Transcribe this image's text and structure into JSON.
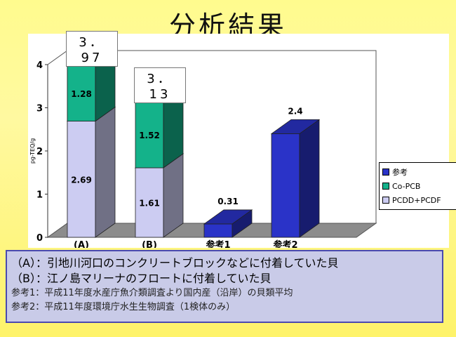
{
  "slide": {
    "title": "分析結果"
  },
  "chart_data": {
    "type": "bar",
    "stacked": true,
    "three_d": true,
    "categories": [
      "(A)",
      "(B)",
      "参考1",
      "参考2"
    ],
    "ylabel": "pg-TEQ/g",
    "ylim": [
      0,
      4
    ],
    "yticks": [
      "0",
      "1",
      "2",
      "3",
      "4"
    ],
    "grid": false,
    "legend_position": "right",
    "series": [
      {
        "name": "PCDD+PCDF",
        "color": "#ccccf2",
        "values": [
          2.69,
          1.61,
          null,
          null
        ],
        "labels": [
          "2.69",
          "1.61",
          "",
          ""
        ]
      },
      {
        "name": "Co-PCB",
        "color": "#14b28a",
        "values": [
          1.28,
          1.52,
          null,
          null
        ],
        "labels": [
          "1.28",
          "1.52",
          "",
          ""
        ]
      },
      {
        "name": "参考",
        "color": "#2a33c8",
        "values": [
          null,
          null,
          0.31,
          2.4
        ],
        "labels": [
          "",
          "",
          "0.31",
          "2.4"
        ]
      }
    ],
    "totals": [
      "3．97",
      "3．13",
      "",
      ""
    ],
    "legend_order": [
      "参考",
      "Co-PCB",
      "PCDD+PCDF"
    ]
  },
  "notes": {
    "line_a": "（A）：引地川河口のコンクリートブロックなどに付着していた貝",
    "line_b": "（B）：江ノ島マリーナのフロートに付着していた貝",
    "line_ref1": "参考1：平成11年度水産庁魚介類調査より国内産（沿岸）の貝類平均",
    "line_ref2": "参考2：平成11年度環境庁水生生物調査（1検体のみ）"
  }
}
